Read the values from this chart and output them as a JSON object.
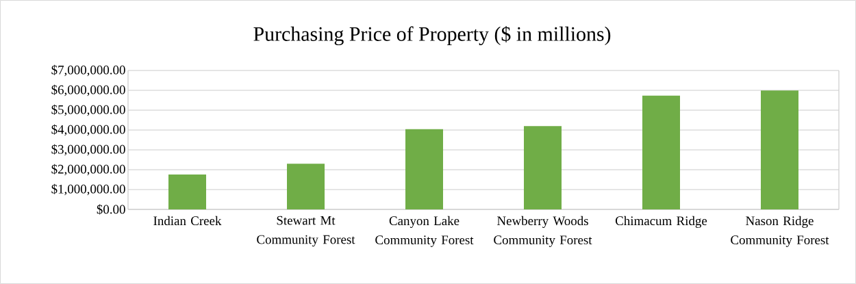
{
  "chart_data": {
    "type": "bar",
    "title": "Purchasing Price of Property ($ in millions)",
    "categories": [
      "Indian Creek",
      "Stewart Mt Community Forest",
      "Canyon Lake Community Forest",
      "Newberry Woods Community Forest",
      "Chimacum Ridge",
      "Nason Ridge Community Forest"
    ],
    "values": [
      1760000,
      2300000,
      4040000,
      4200000,
      5730000,
      5990000
    ],
    "color": "#70ad47",
    "ylim": [
      0,
      7000000
    ],
    "yticks": [
      {
        "value": 0,
        "label": "$0.00"
      },
      {
        "value": 1000000,
        "label": "$1,000,000.00"
      },
      {
        "value": 2000000,
        "label": "$2,000,000.00"
      },
      {
        "value": 3000000,
        "label": "$3,000,000.00"
      },
      {
        "value": 4000000,
        "label": "$4,000,000.00"
      },
      {
        "value": 5000000,
        "label": "$5,000,000.00"
      },
      {
        "value": 6000000,
        "label": "$6,000,000.00"
      },
      {
        "value": 7000000,
        "label": "$7,000,000.00"
      }
    ],
    "grid": "y"
  }
}
